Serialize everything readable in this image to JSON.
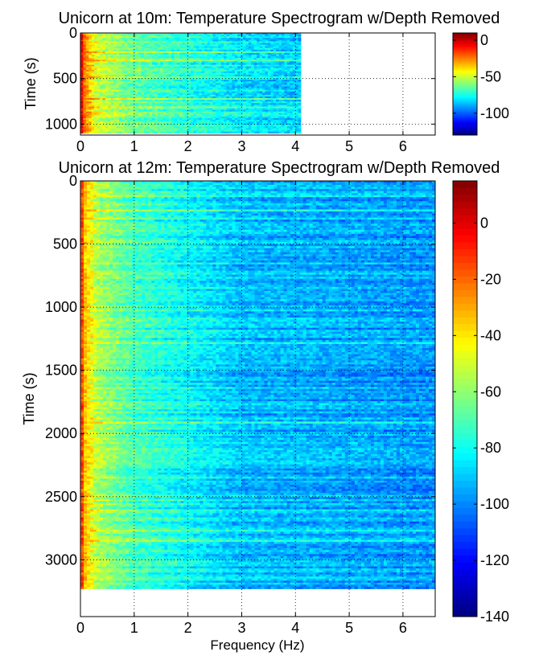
{
  "chart_data": [
    {
      "type": "heatmap",
      "title": "Unicorn at 10m: Temperature Spectrogram w/Depth Removed",
      "xlabel": "",
      "ylabel": "Time (s)",
      "xlim": [
        0,
        6.6
      ],
      "ylim": [
        0,
        1120
      ],
      "y_reversed": true,
      "xticks": [
        "0",
        "1",
        "2",
        "3",
        "4",
        "5",
        "6"
      ],
      "yticks": [
        "0",
        "500",
        "1000"
      ],
      "data_extent": {
        "x_max": 4.1,
        "y_max": 1100
      },
      "grid": true,
      "colormap": "jet",
      "colorbar": {
        "range": [
          -130,
          10
        ],
        "ticks": [
          "0",
          "-50",
          "-100"
        ]
      },
      "profile": [
        {
          "f": 0,
          "level": 8
        },
        {
          "f": 0.05,
          "level": -20
        },
        {
          "f": 0.3,
          "level": -48
        },
        {
          "f": 0.9,
          "level": -62
        },
        {
          "f": 2.0,
          "level": -72
        },
        {
          "f": 3.0,
          "level": -80
        },
        {
          "f": 4.1,
          "level": -84
        }
      ]
    },
    {
      "type": "heatmap",
      "title": "Unicorn at 12m: Temperature Spectrogram w/Depth Removed",
      "xlabel": "Frequency (Hz)",
      "ylabel": "Time (s)",
      "xlim": [
        0,
        6.6
      ],
      "ylim": [
        0,
        3450
      ],
      "y_reversed": true,
      "xticks": [
        "0",
        "1",
        "2",
        "3",
        "4",
        "5",
        "6"
      ],
      "yticks": [
        "0",
        "500",
        "1000",
        "1500",
        "2000",
        "2500",
        "3000"
      ],
      "data_extent": {
        "x_max": 6.6,
        "y_max": 3230
      },
      "grid": true,
      "colormap": "jet",
      "colorbar": {
        "range": [
          -140,
          15
        ],
        "ticks": [
          "0",
          "-20",
          "-40",
          "-60",
          "-80",
          "-100",
          "-120",
          "-140"
        ]
      },
      "profile": [
        {
          "f": 0,
          "level": 5
        },
        {
          "f": 0.05,
          "level": -30
        },
        {
          "f": 0.3,
          "level": -55
        },
        {
          "f": 1.0,
          "level": -72
        },
        {
          "f": 2.0,
          "level": -82
        },
        {
          "f": 3.0,
          "level": -92
        },
        {
          "f": 6.6,
          "level": -98
        }
      ]
    }
  ]
}
